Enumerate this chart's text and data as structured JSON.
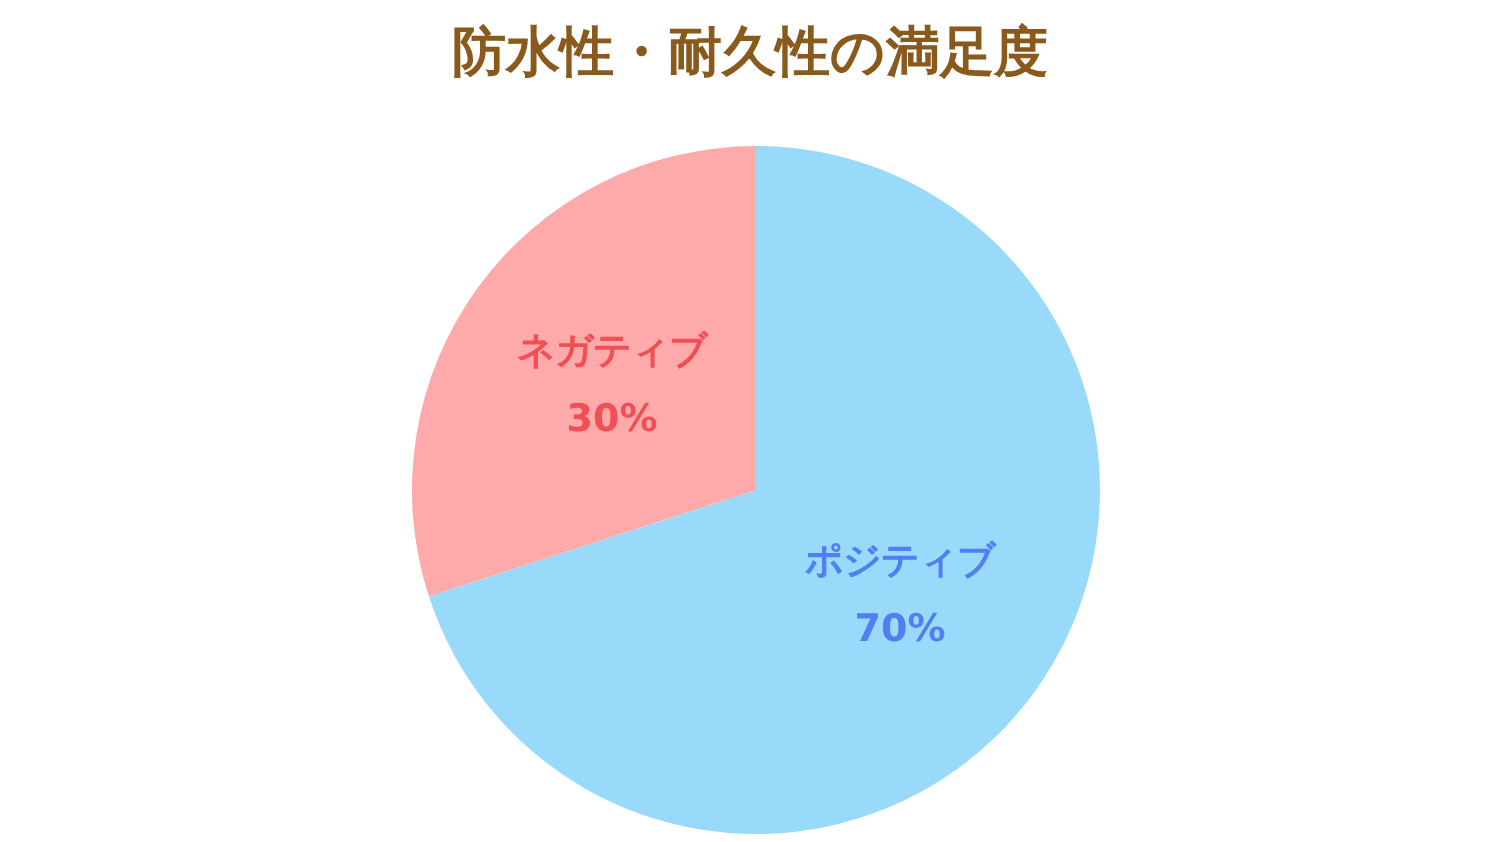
{
  "chart_data": {
    "type": "pie",
    "title": "防水性・耐久性の満足度",
    "categories": [
      "ポジティブ",
      "ネガティブ"
    ],
    "values": [
      70,
      30
    ],
    "value_labels": [
      "70%",
      "30%"
    ],
    "colors": [
      "#99d9fa",
      "#ffaaaa"
    ],
    "legend": false
  }
}
